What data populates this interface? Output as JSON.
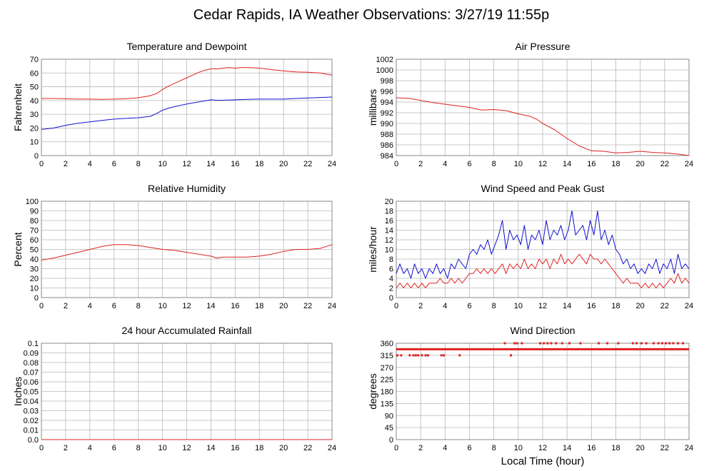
{
  "page": {
    "title": "Cedar Rapids, IA Weather Observations: 3/27/19 11:55p",
    "x_axis_label": "Local Time (hour)"
  },
  "colors": {
    "primary": "#e02020",
    "secondary": "#1010d0",
    "grid": "#b8b8b8",
    "frame": "#888888"
  },
  "chart_data": [
    {
      "id": "temperature",
      "type": "line",
      "title": "Temperature and Dewpoint",
      "ylabel": "Fahrenheit",
      "xlim": [
        0,
        24
      ],
      "ylim": [
        0,
        70
      ],
      "x_ticks": [
        0,
        2,
        4,
        6,
        8,
        10,
        12,
        14,
        16,
        18,
        20,
        22,
        24
      ],
      "y_ticks": [
        0,
        10,
        20,
        30,
        40,
        50,
        60,
        70
      ],
      "y_tick_labels": [
        "0",
        "10",
        "20",
        "30",
        "40",
        "50",
        "60",
        "70"
      ],
      "grid": true,
      "series": [
        {
          "color": "#e02020",
          "x": [
            0,
            1,
            2,
            3,
            4,
            5,
            6,
            7,
            8,
            9,
            9.5,
            10,
            10.5,
            11,
            11.5,
            12,
            12.5,
            13,
            13.5,
            14,
            14.5,
            15,
            15.5,
            16,
            16.5,
            17,
            17.5,
            18,
            19,
            20,
            21,
            22,
            23,
            24
          ],
          "y": [
            41.5,
            41.5,
            41.2,
            41,
            41,
            40.8,
            41,
            41.3,
            42,
            43.5,
            45,
            48,
            50.5,
            52.5,
            54.5,
            56.5,
            58.5,
            60.5,
            62,
            63,
            63,
            63.5,
            64,
            63.5,
            64,
            64,
            63.8,
            63.5,
            62.5,
            61.5,
            60.8,
            60.5,
            60,
            58.5
          ]
        },
        {
          "color": "#1010d0",
          "x": [
            0,
            1,
            2,
            3,
            4,
            5,
            6,
            7,
            8,
            9,
            9.5,
            10,
            10.5,
            11,
            12,
            13,
            14,
            14.5,
            15,
            16,
            17,
            18,
            19,
            20,
            21,
            22,
            23,
            24
          ],
          "y": [
            19,
            20,
            22,
            23.5,
            24.5,
            25.5,
            26.5,
            27,
            27.5,
            28.5,
            30.5,
            33,
            34.5,
            35.5,
            37.5,
            39,
            40.5,
            40.2,
            40.2,
            40.5,
            40.8,
            41,
            41,
            41,
            41.5,
            41.8,
            42.2,
            42.5
          ]
        }
      ]
    },
    {
      "id": "pressure",
      "type": "line",
      "title": "Air Pressure",
      "ylabel": "millibars",
      "xlim": [
        0,
        24
      ],
      "ylim": [
        984,
        1002
      ],
      "x_ticks": [
        0,
        2,
        4,
        6,
        8,
        10,
        12,
        14,
        16,
        18,
        20,
        22,
        24
      ],
      "y_ticks": [
        984,
        986,
        988,
        990,
        992,
        994,
        996,
        998,
        1000,
        1002
      ],
      "y_tick_labels": [
        "984",
        "986",
        "988",
        "990",
        "992",
        "994",
        "996",
        "998",
        "1000",
        "1002"
      ],
      "grid": true,
      "series": [
        {
          "color": "#e02020",
          "x": [
            0,
            1,
            2,
            3,
            4,
            5,
            6,
            7,
            8,
            9,
            10,
            11,
            11.5,
            12,
            13,
            14,
            15,
            16,
            17,
            18,
            19,
            20,
            21,
            22,
            23,
            24
          ],
          "y": [
            994.8,
            994.7,
            994.3,
            993.9,
            993.6,
            993.3,
            993,
            992.5,
            992.6,
            992.4,
            991.8,
            991.3,
            990.8,
            990,
            988.8,
            987.2,
            985.8,
            984.9,
            984.8,
            984.5,
            984.6,
            984.8,
            984.6,
            984.5,
            984.3,
            984
          ]
        }
      ]
    },
    {
      "id": "humidity",
      "type": "line",
      "title": "Relative Humidity",
      "ylabel": "Percent",
      "xlim": [
        0,
        24
      ],
      "ylim": [
        0,
        100
      ],
      "x_ticks": [
        0,
        2,
        4,
        6,
        8,
        10,
        12,
        14,
        16,
        18,
        20,
        22,
        24
      ],
      "y_ticks": [
        0,
        10,
        20,
        30,
        40,
        50,
        60,
        70,
        80,
        90,
        100
      ],
      "y_tick_labels": [
        "0",
        "10",
        "20",
        "30",
        "40",
        "50",
        "60",
        "70",
        "80",
        "90",
        "100"
      ],
      "grid": true,
      "series": [
        {
          "color": "#e02020",
          "x": [
            0,
            1,
            2,
            3,
            4,
            5,
            6,
            7,
            8,
            9,
            10,
            11,
            12,
            13,
            14,
            14.5,
            15,
            16,
            17,
            18,
            19,
            20,
            21,
            22,
            23,
            24
          ],
          "y": [
            39,
            41,
            44,
            47,
            50,
            53,
            55,
            55,
            54,
            52,
            50,
            49,
            47,
            45,
            43,
            41,
            42,
            42,
            42,
            43,
            45,
            48,
            50,
            50,
            51,
            55
          ]
        }
      ]
    },
    {
      "id": "wind-speed",
      "type": "line",
      "title": "Wind Speed and Peak Gust",
      "ylabel": "miles/hour",
      "xlim": [
        0,
        24
      ],
      "ylim": [
        0,
        20
      ],
      "x_ticks": [
        0,
        2,
        4,
        6,
        8,
        10,
        12,
        14,
        16,
        18,
        20,
        22,
        24
      ],
      "y_ticks": [
        0,
        2,
        4,
        6,
        8,
        10,
        12,
        14,
        16,
        18,
        20
      ],
      "y_tick_labels": [
        "0",
        "2",
        "4",
        "6",
        "8",
        "10",
        "12",
        "14",
        "16",
        "18",
        "20"
      ],
      "grid": true,
      "series": [
        {
          "color": "#1010d0",
          "x": [
            0,
            0.3,
            0.6,
            0.9,
            1.2,
            1.5,
            1.8,
            2.1,
            2.4,
            2.7,
            3,
            3.3,
            3.6,
            3.9,
            4.2,
            4.5,
            4.8,
            5.1,
            5.4,
            5.7,
            6,
            6.3,
            6.6,
            6.9,
            7.2,
            7.5,
            7.8,
            8.1,
            8.4,
            8.7,
            9,
            9.3,
            9.6,
            9.9,
            10.2,
            10.5,
            10.8,
            11.1,
            11.4,
            11.7,
            12,
            12.3,
            12.6,
            12.9,
            13.2,
            13.5,
            13.8,
            14.1,
            14.4,
            14.7,
            15,
            15.3,
            15.6,
            15.9,
            16.2,
            16.5,
            16.8,
            17.1,
            17.4,
            17.7,
            18,
            18.3,
            18.6,
            18.9,
            19.2,
            19.5,
            19.8,
            20.1,
            20.4,
            20.7,
            21,
            21.3,
            21.6,
            21.9,
            22.2,
            22.5,
            22.8,
            23.1,
            23.4,
            23.7,
            24
          ],
          "y": [
            5,
            7,
            5,
            6,
            4,
            7,
            5,
            6,
            4,
            6,
            5,
            7,
            5,
            6,
            4,
            7,
            6,
            8,
            7,
            6,
            9,
            10,
            9,
            11,
            10,
            12,
            9,
            11,
            13,
            16,
            10,
            14,
            12,
            13,
            11,
            15,
            10,
            13,
            12,
            14,
            11,
            16,
            12,
            14,
            13,
            15,
            12,
            14,
            18,
            13,
            14,
            15,
            12,
            16,
            13,
            18,
            12,
            14,
            11,
            13,
            10,
            9,
            7,
            8,
            6,
            7,
            5,
            6,
            5,
            7,
            6,
            8,
            5,
            7,
            6,
            8,
            5,
            9,
            6,
            7,
            6
          ]
        },
        {
          "color": "#e02020",
          "x": [
            0,
            0.3,
            0.6,
            0.9,
            1.2,
            1.5,
            1.8,
            2.1,
            2.4,
            2.7,
            3,
            3.3,
            3.6,
            3.9,
            4.2,
            4.5,
            4.8,
            5.1,
            5.4,
            5.7,
            6,
            6.3,
            6.6,
            6.9,
            7.2,
            7.5,
            7.8,
            8.1,
            8.4,
            8.7,
            9,
            9.3,
            9.6,
            9.9,
            10.2,
            10.5,
            10.8,
            11.1,
            11.4,
            11.7,
            12,
            12.3,
            12.6,
            12.9,
            13.2,
            13.5,
            13.8,
            14.1,
            14.4,
            14.7,
            15,
            15.3,
            15.6,
            15.9,
            16.2,
            16.5,
            16.8,
            17.1,
            17.4,
            17.7,
            18,
            18.3,
            18.6,
            18.9,
            19.2,
            19.5,
            19.8,
            20.1,
            20.4,
            20.7,
            21,
            21.3,
            21.6,
            21.9,
            22.2,
            22.5,
            22.8,
            23.1,
            23.4,
            23.7,
            24
          ],
          "y": [
            2,
            3,
            2,
            3,
            2,
            3,
            2,
            3,
            2,
            3,
            3,
            3,
            4,
            3,
            3,
            4,
            3,
            4,
            3,
            4,
            5,
            5,
            6,
            5,
            6,
            5,
            6,
            5,
            6,
            7,
            5,
            7,
            6,
            7,
            6,
            8,
            6,
            7,
            6,
            8,
            7,
            8,
            6,
            8,
            7,
            9,
            7,
            8,
            7,
            8,
            9,
            8,
            7,
            9,
            8,
            8,
            7,
            8,
            7,
            6,
            5,
            4,
            3,
            4,
            3,
            3,
            3,
            2,
            3,
            2,
            3,
            2,
            3,
            2,
            3,
            4,
            3,
            5,
            3,
            4,
            3
          ]
        }
      ]
    },
    {
      "id": "rainfall",
      "type": "line",
      "title": "24 hour Accumulated Rainfall",
      "ylabel": "Inches",
      "xlim": [
        0,
        24
      ],
      "ylim": [
        0,
        0.1
      ],
      "x_ticks": [
        0,
        2,
        4,
        6,
        8,
        10,
        12,
        14,
        16,
        18,
        20,
        22,
        24
      ],
      "y_ticks": [
        0,
        0.01,
        0.02,
        0.03,
        0.04,
        0.05,
        0.06,
        0.07,
        0.08,
        0.09,
        0.1
      ],
      "y_tick_labels": [
        "0.0",
        "0.01",
        "0.02",
        "0.03",
        "0.04",
        "0.05",
        "0.06",
        "0.07",
        "0.08",
        "0.09",
        "0.1"
      ],
      "grid": true,
      "series": [
        {
          "color": "#e02020",
          "x": [
            0,
            24
          ],
          "y": [
            0,
            0
          ]
        }
      ]
    },
    {
      "id": "wind-direction",
      "type": "scatter",
      "title": "Wind Direction",
      "ylabel": "degrees",
      "xlim": [
        0,
        24
      ],
      "ylim": [
        0,
        360
      ],
      "x_ticks": [
        0,
        2,
        4,
        6,
        8,
        10,
        12,
        14,
        16,
        18,
        20,
        22,
        24
      ],
      "y_ticks": [
        0,
        45,
        90,
        135,
        180,
        225,
        270,
        315,
        360
      ],
      "y_tick_labels": [
        "0",
        "45",
        "90",
        "135",
        "180",
        "225",
        "270",
        "315",
        "360"
      ],
      "grid": true,
      "series": [
        {
          "color": "#e02020",
          "x": [
            0.1,
            0.4,
            1.1,
            1.4,
            1.6,
            1.8,
            2.1,
            2.4,
            2.6,
            3.7,
            3.9,
            5.2,
            8.9,
            9.4,
            9.7,
            9.9,
            10.3,
            11.8,
            12.1,
            12.4,
            12.7,
            13.1,
            13.6,
            14.2,
            15.1,
            16.6,
            17.3,
            18.2,
            19.4,
            19.7,
            20.1,
            20.5,
            21.1,
            21.5,
            21.8,
            22.1,
            22.4,
            22.7,
            23.1,
            23.5
          ],
          "y": [
            315,
            315,
            315,
            315,
            315,
            315,
            315,
            315,
            315,
            315,
            315,
            315,
            360,
            315,
            360,
            360,
            360,
            360,
            360,
            360,
            360,
            360,
            360,
            360,
            360,
            360,
            360,
            360,
            360,
            360,
            360,
            360,
            360,
            360,
            360,
            360,
            360,
            360,
            360,
            360
          ]
        },
        {
          "color": "#e02020",
          "x": [
            0,
            24
          ],
          "y": [
            337.5,
            337.5
          ],
          "line": true
        }
      ]
    }
  ]
}
